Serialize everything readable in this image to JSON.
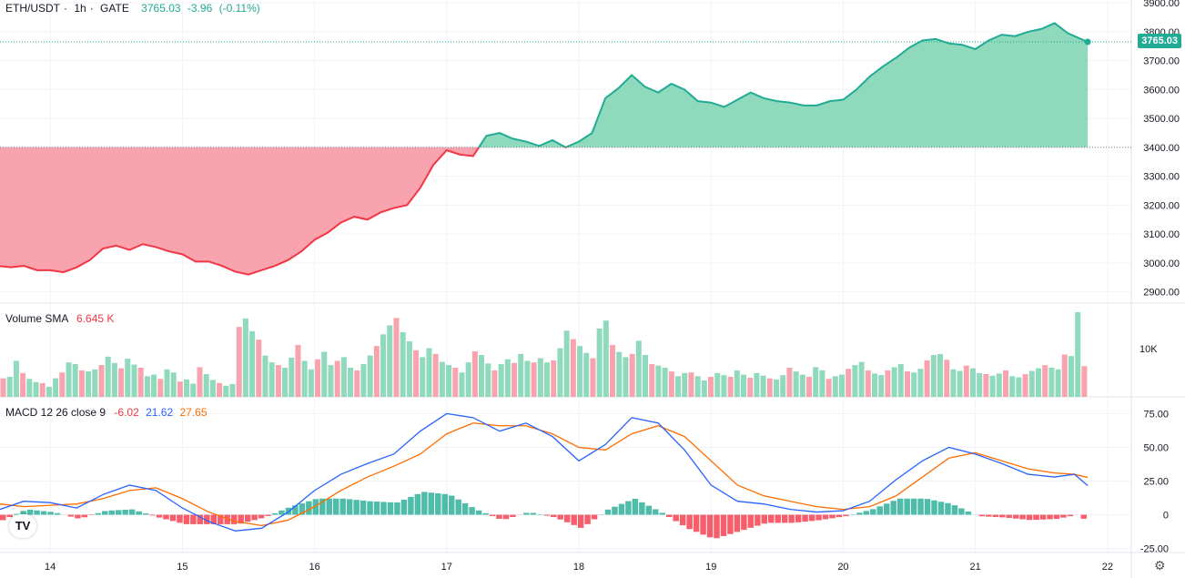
{
  "header": {
    "symbol": "ETH/USDT",
    "timeframe": "1h",
    "exchange": "GATE",
    "last": "3765.03",
    "change": "-3.96",
    "change_pct": "(-0.11%)"
  },
  "price_axis": {
    "ticks": [
      "3900.00",
      "3800.00",
      "3700.00",
      "3600.00",
      "3500.00",
      "3400.00",
      "3300.00",
      "3200.00",
      "3100.00",
      "3000.00",
      "2900.00"
    ],
    "last_label": "3765.03"
  },
  "volume": {
    "title": "Volume SMA",
    "value": "6.645 K",
    "tick": "10K"
  },
  "macd": {
    "title": "MACD 12 26 close 9",
    "hist": "-6.02",
    "macd": "21.62",
    "signal": "27.65",
    "ticks": [
      "75.00",
      "50.00",
      "25.00",
      "0",
      "-25.00"
    ]
  },
  "time_axis": {
    "ticks": [
      "14",
      "15",
      "16",
      "17",
      "18",
      "19",
      "20",
      "21",
      "22"
    ]
  },
  "colors": {
    "up": "#22ab94",
    "down": "#f23645",
    "up_fill": "#8fd9bc",
    "down_fill": "#f8a3ad",
    "macd_line": "#2962ff",
    "signal_line": "#ff6d00"
  },
  "chart_data": {
    "type": "area",
    "baseline": 3400,
    "price_ylim": [
      2880,
      3910
    ],
    "price": [
      [
        13.6,
        2990
      ],
      [
        13.7,
        2985
      ],
      [
        13.8,
        2990
      ],
      [
        13.9,
        2975
      ],
      [
        14.0,
        2975
      ],
      [
        14.1,
        2968
      ],
      [
        14.2,
        2985
      ],
      [
        14.3,
        3010
      ],
      [
        14.4,
        3050
      ],
      [
        14.5,
        3060
      ],
      [
        14.6,
        3045
      ],
      [
        14.7,
        3065
      ],
      [
        14.8,
        3055
      ],
      [
        14.9,
        3040
      ],
      [
        15.0,
        3030
      ],
      [
        15.1,
        3005
      ],
      [
        15.2,
        3005
      ],
      [
        15.3,
        2990
      ],
      [
        15.4,
        2970
      ],
      [
        15.5,
        2960
      ],
      [
        15.6,
        2975
      ],
      [
        15.7,
        2990
      ],
      [
        15.8,
        3010
      ],
      [
        15.9,
        3040
      ],
      [
        16.0,
        3080
      ],
      [
        16.1,
        3105
      ],
      [
        16.2,
        3140
      ],
      [
        16.3,
        3160
      ],
      [
        16.4,
        3150
      ],
      [
        16.5,
        3175
      ],
      [
        16.6,
        3190
      ],
      [
        16.7,
        3200
      ],
      [
        16.8,
        3260
      ],
      [
        16.9,
        3340
      ],
      [
        17.0,
        3390
      ],
      [
        17.1,
        3375
      ],
      [
        17.2,
        3370
      ],
      [
        17.3,
        3440
      ],
      [
        17.4,
        3450
      ],
      [
        17.5,
        3430
      ],
      [
        17.6,
        3420
      ],
      [
        17.7,
        3405
      ],
      [
        17.8,
        3425
      ],
      [
        17.9,
        3400
      ],
      [
        18.0,
        3420
      ],
      [
        18.1,
        3450
      ],
      [
        18.2,
        3570
      ],
      [
        18.3,
        3605
      ],
      [
        18.4,
        3650
      ],
      [
        18.5,
        3610
      ],
      [
        18.6,
        3590
      ],
      [
        18.7,
        3620
      ],
      [
        18.8,
        3600
      ],
      [
        18.9,
        3560
      ],
      [
        19.0,
        3555
      ],
      [
        19.1,
        3540
      ],
      [
        19.2,
        3565
      ],
      [
        19.3,
        3590
      ],
      [
        19.4,
        3570
      ],
      [
        19.5,
        3560
      ],
      [
        19.6,
        3555
      ],
      [
        19.7,
        3545
      ],
      [
        19.8,
        3545
      ],
      [
        19.9,
        3560
      ],
      [
        20.0,
        3565
      ],
      [
        20.1,
        3600
      ],
      [
        20.2,
        3645
      ],
      [
        20.3,
        3680
      ],
      [
        20.4,
        3710
      ],
      [
        20.5,
        3745
      ],
      [
        20.6,
        3770
      ],
      [
        20.7,
        3775
      ],
      [
        20.8,
        3760
      ],
      [
        20.9,
        3755
      ],
      [
        21.0,
        3740
      ],
      [
        21.1,
        3770
      ],
      [
        21.2,
        3790
      ],
      [
        21.3,
        3785
      ],
      [
        21.4,
        3800
      ],
      [
        21.5,
        3810
      ],
      [
        21.6,
        3830
      ],
      [
        21.7,
        3795
      ],
      [
        21.85,
        3765
      ]
    ],
    "x_ticks": [
      14,
      15,
      16,
      17,
      18,
      19,
      20,
      21,
      22
    ],
    "x_range": [
      13.62,
      22.18
    ],
    "volume": [
      3.5,
      3.8,
      6.8,
      4.5,
      3.4,
      2.8,
      2.6,
      1.9,
      3.5,
      4.6,
      6.5,
      6.2,
      5.0,
      4.8,
      5.2,
      6.0,
      7.6,
      6.4,
      5.4,
      7.2,
      6.1,
      5.5,
      3.9,
      4.2,
      3.4,
      5.2,
      4.6,
      2.9,
      3.3,
      2.5,
      5.6,
      4.3,
      3.2,
      2.6,
      2.1,
      2.4,
      13.2,
      14.8,
      12.4,
      10.8,
      7.8,
      6.5,
      6.0,
      5.5,
      7.4,
      9.8,
      6.8,
      5.2,
      7.1,
      8.5,
      6.0,
      6.8,
      7.5,
      5.5,
      5.0,
      6.2,
      7.8,
      9.6,
      11.8,
      13.5,
      14.9,
      12.2,
      10.5,
      8.8,
      7.5,
      9.2,
      8.1,
      6.6,
      6.0,
      5.5,
      4.6,
      6.5,
      8.6,
      7.9,
      6.3,
      5.0,
      6.2,
      7.1,
      6.4,
      8.1,
      6.8,
      6.5,
      7.3,
      6.5,
      6.9,
      9.2,
      12.5,
      10.9,
      9.6,
      8.3,
      7.3,
      12.9,
      14.4,
      9.8,
      8.5,
      7.5,
      8.1,
      10.6,
      7.9,
      6.2,
      5.9,
      5.5,
      4.8,
      3.9,
      4.5,
      4.6,
      3.9,
      3.1,
      3.8,
      4.5,
      4.1,
      3.8,
      5.0,
      4.2,
      3.6,
      4.5,
      4.0,
      3.5,
      3.3,
      4.1,
      5.5,
      4.8,
      4.2,
      3.8,
      5.6,
      5.0,
      3.4,
      3.9,
      4.2,
      5.3,
      6.0,
      6.6,
      5.0,
      4.4,
      4.1,
      5.0,
      5.6,
      6.2,
      4.8,
      4.6,
      5.3,
      6.9,
      7.9,
      8.1,
      7.0,
      5.2,
      4.9,
      5.9,
      5.4,
      4.5,
      4.3,
      4.0,
      4.4,
      5.0,
      3.9,
      3.7,
      4.3,
      4.9,
      5.4,
      6.0,
      5.5,
      5.2,
      8.0,
      7.7,
      16.0,
      5.8
    ],
    "volume_ylim": [
      0,
      16.5
    ],
    "macd": [
      [
        13.62,
        4
      ],
      [
        13.8,
        10
      ],
      [
        14.0,
        9
      ],
      [
        14.2,
        5
      ],
      [
        14.4,
        15
      ],
      [
        14.6,
        22
      ],
      [
        14.8,
        18
      ],
      [
        15.0,
        5
      ],
      [
        15.2,
        -5
      ],
      [
        15.4,
        -12
      ],
      [
        15.6,
        -10
      ],
      [
        15.8,
        2
      ],
      [
        16.0,
        18
      ],
      [
        16.2,
        30
      ],
      [
        16.4,
        38
      ],
      [
        16.6,
        45
      ],
      [
        16.8,
        62
      ],
      [
        17.0,
        75
      ],
      [
        17.2,
        72
      ],
      [
        17.4,
        62
      ],
      [
        17.6,
        68
      ],
      [
        17.8,
        58
      ],
      [
        18.0,
        40
      ],
      [
        18.2,
        52
      ],
      [
        18.4,
        72
      ],
      [
        18.6,
        68
      ],
      [
        18.8,
        48
      ],
      [
        19.0,
        22
      ],
      [
        19.2,
        10
      ],
      [
        19.4,
        8
      ],
      [
        19.6,
        4
      ],
      [
        19.8,
        2
      ],
      [
        20.0,
        3
      ],
      [
        20.2,
        10
      ],
      [
        20.4,
        26
      ],
      [
        20.6,
        40
      ],
      [
        20.8,
        50
      ],
      [
        21.0,
        45
      ],
      [
        21.2,
        38
      ],
      [
        21.4,
        30
      ],
      [
        21.6,
        28
      ],
      [
        21.75,
        30
      ],
      [
        21.85,
        21.62
      ]
    ],
    "signal": [
      [
        13.62,
        8
      ],
      [
        13.8,
        6
      ],
      [
        14.0,
        7
      ],
      [
        14.2,
        8
      ],
      [
        14.4,
        12
      ],
      [
        14.6,
        18
      ],
      [
        14.8,
        20
      ],
      [
        15.0,
        12
      ],
      [
        15.2,
        2
      ],
      [
        15.4,
        -5
      ],
      [
        15.6,
        -8
      ],
      [
        15.8,
        -4
      ],
      [
        16.0,
        6
      ],
      [
        16.2,
        18
      ],
      [
        16.4,
        28
      ],
      [
        16.6,
        36
      ],
      [
        16.8,
        45
      ],
      [
        17.0,
        60
      ],
      [
        17.2,
        68
      ],
      [
        17.4,
        66
      ],
      [
        17.6,
        66
      ],
      [
        17.8,
        60
      ],
      [
        18.0,
        50
      ],
      [
        18.2,
        48
      ],
      [
        18.4,
        60
      ],
      [
        18.6,
        66
      ],
      [
        18.8,
        58
      ],
      [
        19.0,
        40
      ],
      [
        19.2,
        22
      ],
      [
        19.4,
        14
      ],
      [
        19.6,
        10
      ],
      [
        19.8,
        6
      ],
      [
        20.0,
        4
      ],
      [
        20.2,
        6
      ],
      [
        20.4,
        14
      ],
      [
        20.6,
        28
      ],
      [
        20.8,
        42
      ],
      [
        21.0,
        46
      ],
      [
        21.2,
        40
      ],
      [
        21.4,
        34
      ],
      [
        21.6,
        31
      ],
      [
        21.75,
        30
      ],
      [
        21.85,
        27.65
      ]
    ],
    "macd_ylim": [
      -28,
      80
    ],
    "series": [
      {
        "name": "Volume SMA"
      },
      {
        "name": "MACD"
      }
    ]
  }
}
